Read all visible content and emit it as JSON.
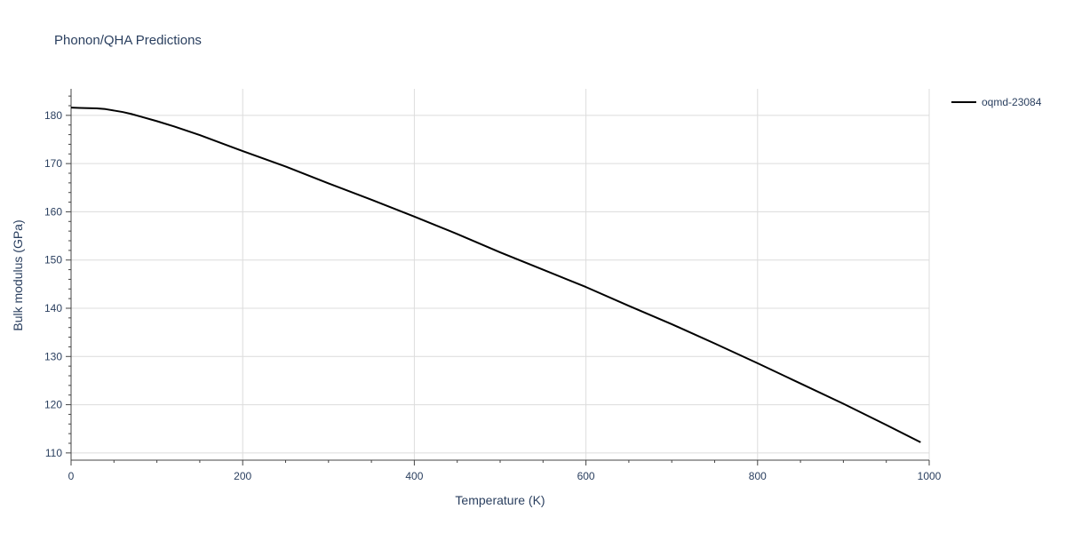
{
  "chart_data": {
    "type": "line",
    "title": "Phonon/QHA Predictions",
    "xlabel": "Temperature (K)",
    "ylabel": "Bulk modulus (GPa)",
    "xlim": [
      0,
      1000
    ],
    "ylim": [
      108.5,
      185.5
    ],
    "x_ticks": [
      0,
      200,
      400,
      600,
      800,
      1000
    ],
    "y_ticks": [
      110,
      120,
      130,
      140,
      150,
      160,
      170,
      180
    ],
    "x_tick_labels": [
      "0",
      "200",
      "400",
      "600",
      "800",
      "1000"
    ],
    "y_tick_labels": [
      "110",
      "120",
      "130",
      "140",
      "150",
      "160",
      "170",
      "180"
    ],
    "grid": true,
    "legend_position": "top-right",
    "series": [
      {
        "name": "oqmd-23084",
        "color": "#000000",
        "x": [
          0,
          10,
          20,
          30,
          40,
          50,
          60,
          70,
          80,
          100,
          120,
          150,
          200,
          250,
          300,
          350,
          400,
          450,
          500,
          550,
          600,
          650,
          700,
          750,
          800,
          850,
          900,
          950,
          990
        ],
        "y": [
          181.6,
          181.55,
          181.5,
          181.45,
          181.3,
          181.0,
          180.7,
          180.3,
          179.8,
          178.8,
          177.7,
          175.9,
          172.6,
          169.4,
          165.9,
          162.5,
          159.0,
          155.4,
          151.6,
          148.0,
          144.4,
          140.5,
          136.7,
          132.7,
          128.6,
          124.4,
          120.2,
          115.8,
          112.2
        ]
      }
    ]
  }
}
